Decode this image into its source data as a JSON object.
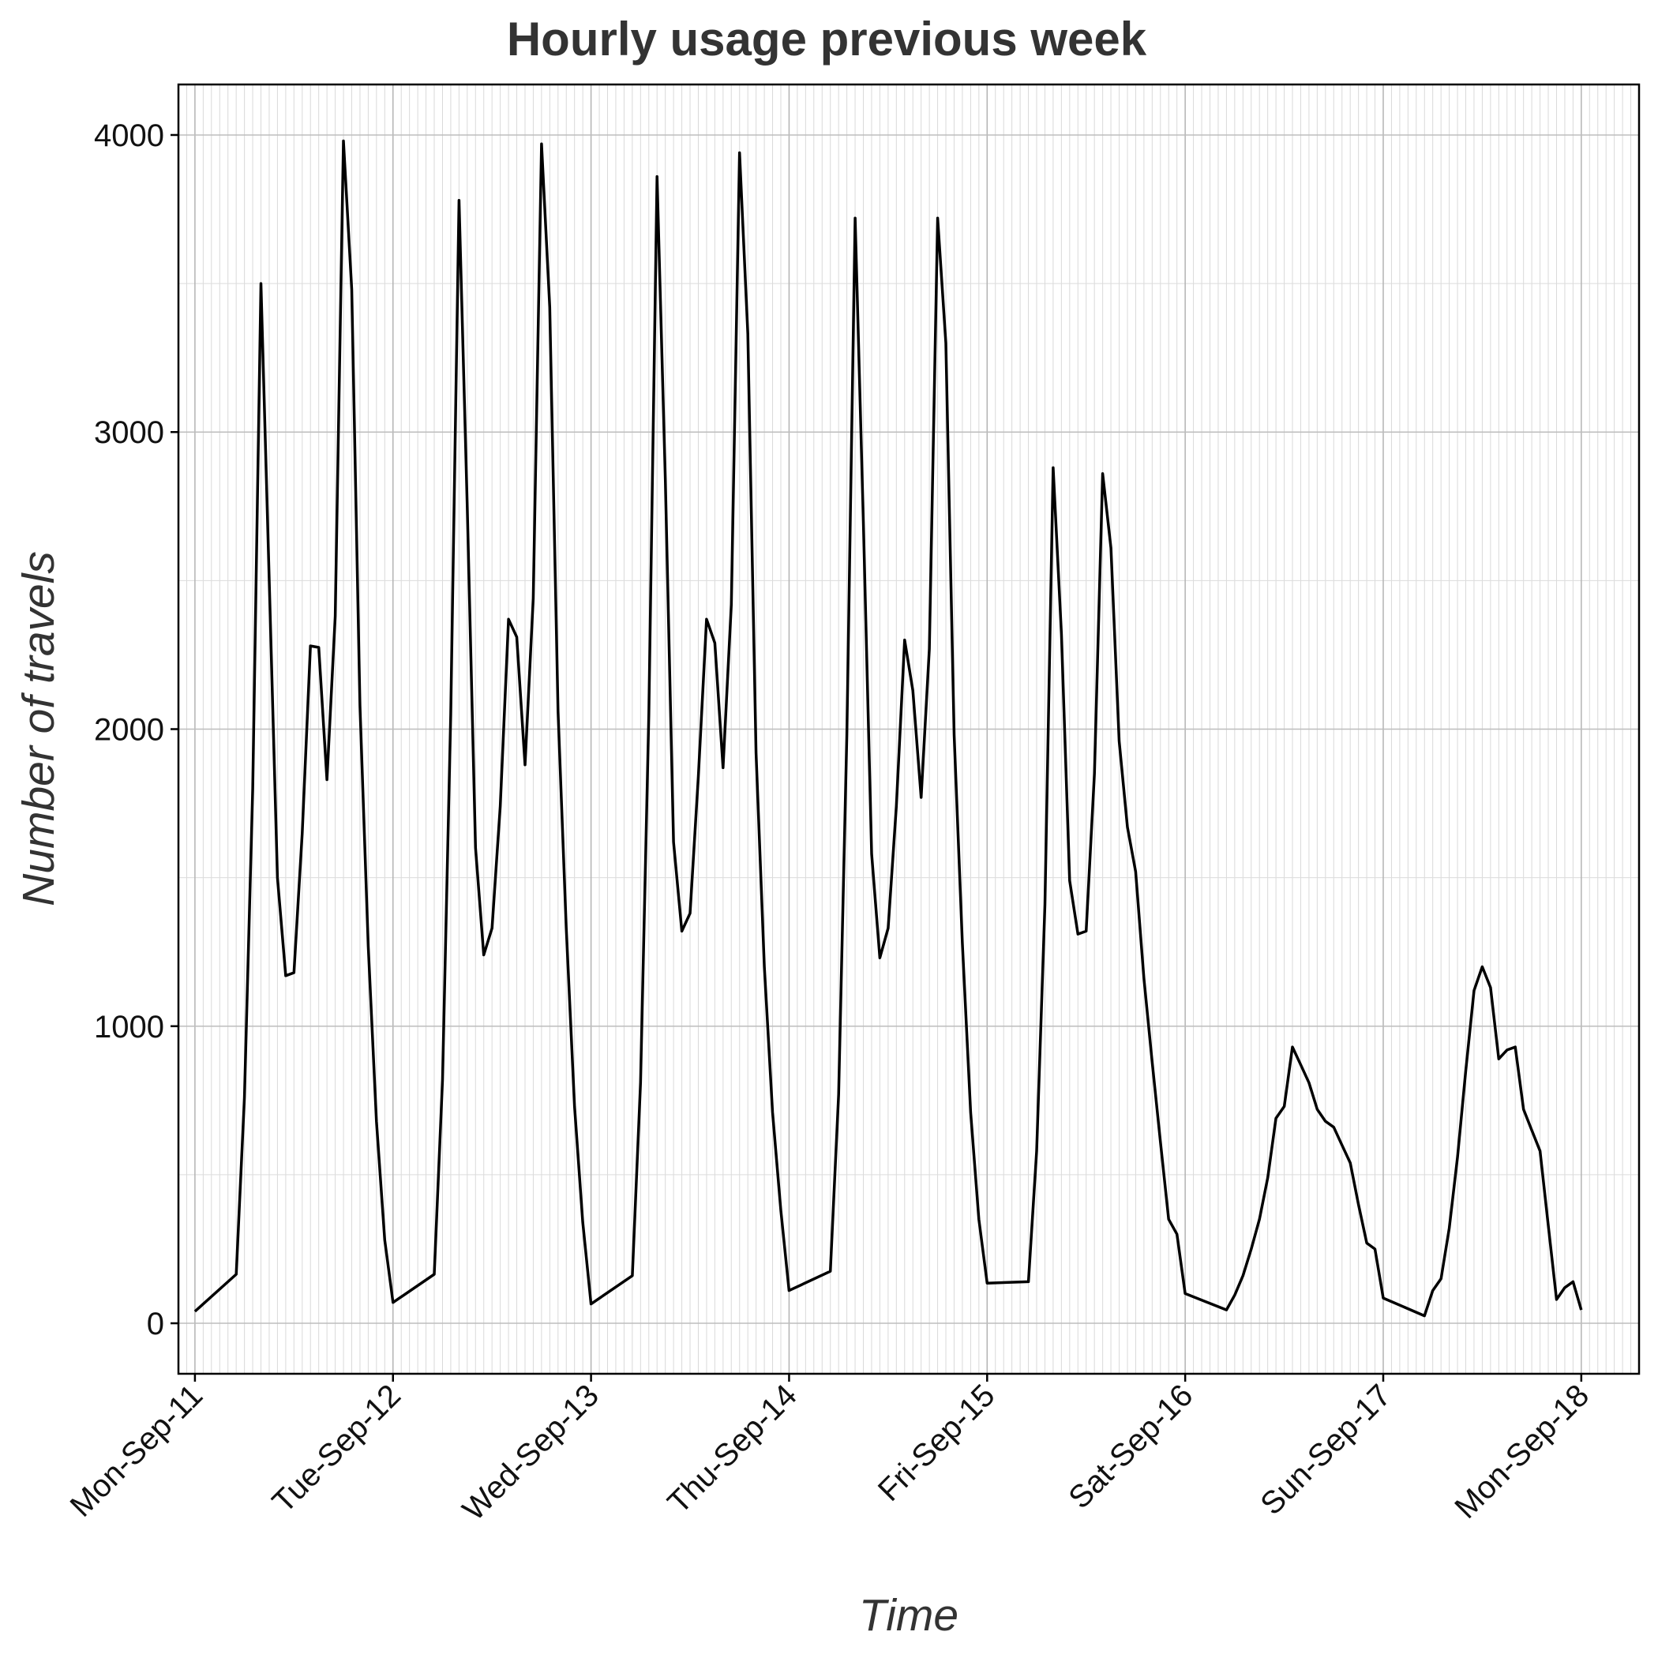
{
  "chart_data": {
    "type": "line",
    "title": "Hourly usage previous week",
    "xlabel": "Time",
    "ylabel": "Number of travels",
    "x_unit": "hours since Mon-Sep-11 00:00",
    "xlim": [
      -2.0,
      175.0
    ],
    "ylim": [
      -170,
      4170
    ],
    "x_ticks": [
      {
        "value": 0,
        "label": "Mon-Sep-11"
      },
      {
        "value": 24,
        "label": "Tue-Sep-12"
      },
      {
        "value": 48,
        "label": "Wed-Sep-13"
      },
      {
        "value": 72,
        "label": "Thu-Sep-14"
      },
      {
        "value": 96,
        "label": "Fri-Sep-15"
      },
      {
        "value": 120,
        "label": "Sat-Sep-16"
      },
      {
        "value": 144,
        "label": "Sun-Sep-17"
      },
      {
        "value": 168,
        "label": "Mon-Sep-18"
      }
    ],
    "y_ticks": [
      {
        "value": 0,
        "label": "0"
      },
      {
        "value": 1000,
        "label": "1000"
      },
      {
        "value": 2000,
        "label": "2000"
      },
      {
        "value": 3000,
        "label": "3000"
      },
      {
        "value": 4000,
        "label": "4000"
      }
    ],
    "grid": true,
    "line_color": "#000000",
    "series": [
      {
        "x": [
          0,
          5,
          6,
          7,
          8,
          9,
          10,
          11,
          12,
          13,
          14,
          15,
          16,
          17,
          18,
          19,
          20,
          21,
          22,
          23,
          24,
          29,
          30,
          31,
          32,
          33,
          34,
          35,
          36,
          37,
          38,
          39,
          40,
          41,
          42,
          43,
          44,
          45,
          46,
          47,
          48,
          53,
          54,
          55,
          56,
          57,
          58,
          59,
          60,
          61,
          62,
          63,
          64,
          65,
          66,
          67,
          68,
          69,
          70,
          71,
          72,
          77,
          78,
          79,
          80,
          81,
          82,
          83,
          84,
          85,
          86,
          87,
          88,
          89,
          90,
          91,
          92,
          93,
          94,
          95,
          96,
          101,
          102,
          103,
          104,
          105,
          106,
          107,
          108,
          109,
          110,
          111,
          112,
          113,
          114,
          115,
          116,
          117,
          118,
          119,
          120,
          125,
          126,
          127,
          128,
          129,
          130,
          131,
          132,
          133,
          134,
          135,
          136,
          137,
          138,
          139,
          140,
          141,
          142,
          143,
          144,
          149,
          150,
          151,
          152,
          153,
          154,
          155,
          156,
          157,
          158,
          159,
          160,
          161,
          162,
          163,
          164,
          165,
          166,
          167,
          168
        ],
        "y": [
          40,
          165,
          760,
          1800,
          3500,
          2500,
          1500,
          1170,
          1180,
          1650,
          2280,
          2275,
          1830,
          2380,
          3980,
          3480,
          2080,
          1270,
          680,
          280,
          70,
          165,
          820,
          2050,
          3780,
          2750,
          1600,
          1240,
          1330,
          1740,
          2370,
          2310,
          1880,
          2440,
          3970,
          3420,
          2060,
          1330,
          730,
          340,
          65,
          160,
          810,
          2050,
          3860,
          2840,
          1620,
          1320,
          1380,
          1840,
          2370,
          2290,
          1870,
          2420,
          3940,
          3330,
          1920,
          1200,
          710,
          380,
          110,
          175,
          770,
          1980,
          3720,
          2700,
          1580,
          1230,
          1330,
          1740,
          2300,
          2130,
          1770,
          2270,
          3720,
          3300,
          1980,
          1280,
          710,
          350,
          135,
          140,
          580,
          1410,
          2880,
          2320,
          1490,
          1310,
          1320,
          1850,
          2860,
          2610,
          1960,
          1670,
          1520,
          1160,
          880,
          610,
          350,
          300,
          100,
          45,
          95,
          160,
          250,
          350,
          490,
          690,
          730,
          930,
          870,
          810,
          720,
          680,
          660,
          600,
          540,
          400,
          270,
          250,
          85,
          25,
          110,
          150,
          320,
          560,
          850,
          1120,
          1200,
          1130,
          890,
          920,
          930,
          720,
          650,
          580,
          330,
          80,
          120,
          140,
          45
        ]
      }
    ]
  }
}
